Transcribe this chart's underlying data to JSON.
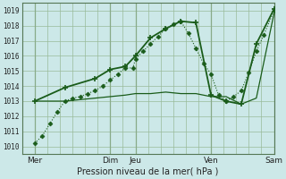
{
  "xlabel": "Pression niveau de la mer( hPa )",
  "bg_color": "#cce8e8",
  "line_color": "#1a5c1a",
  "grid_color": "#99bb99",
  "grid_major_color": "#88aa88",
  "ylim": [
    1009.5,
    1019.5
  ],
  "xlim": [
    0,
    200
  ],
  "tick_positions": [
    10,
    70,
    90,
    150,
    200
  ],
  "tick_labels": [
    "Mer",
    "Dim",
    "Jeu",
    "Ven",
    "Sam"
  ],
  "yticks": [
    1010,
    1011,
    1012,
    1013,
    1014,
    1015,
    1016,
    1017,
    1018,
    1019
  ],
  "vlines": [
    10,
    70,
    90,
    150,
    200
  ],
  "line_dotted_x": [
    10,
    16,
    22,
    28,
    34,
    40,
    46,
    52,
    58,
    64,
    70,
    76,
    82,
    88,
    90,
    96,
    102,
    108,
    114,
    120,
    126,
    132,
    138,
    144,
    150,
    156,
    162,
    168,
    174,
    180,
    186,
    192,
    200
  ],
  "line_dotted_y": [
    1010.2,
    1010.7,
    1011.5,
    1012.3,
    1013.0,
    1013.2,
    1013.3,
    1013.5,
    1013.7,
    1014.0,
    1014.4,
    1014.8,
    1015.2,
    1015.2,
    1015.8,
    1016.3,
    1016.8,
    1017.3,
    1017.8,
    1018.1,
    1018.3,
    1017.5,
    1016.5,
    1015.5,
    1014.8,
    1013.4,
    1013.0,
    1013.3,
    1013.7,
    1014.9,
    1016.3,
    1017.4,
    1019.0
  ],
  "line_flat_x": [
    10,
    22,
    34,
    46,
    58,
    70,
    82,
    90,
    102,
    114,
    126,
    138,
    150,
    162,
    174,
    186,
    200
  ],
  "line_flat_y": [
    1013.0,
    1013.0,
    1013.0,
    1013.1,
    1013.2,
    1013.3,
    1013.4,
    1013.5,
    1013.5,
    1013.6,
    1013.5,
    1013.5,
    1013.3,
    1013.3,
    1012.8,
    1013.2,
    1018.8
  ],
  "line_marked_x": [
    10,
    34,
    58,
    70,
    82,
    90,
    102,
    114,
    126,
    138,
    150,
    162,
    174,
    186,
    200
  ],
  "line_marked_y": [
    1013.0,
    1013.9,
    1014.5,
    1015.1,
    1015.3,
    1016.0,
    1017.2,
    1017.8,
    1018.3,
    1018.2,
    1013.4,
    1013.0,
    1012.8,
    1016.8,
    1019.1
  ]
}
